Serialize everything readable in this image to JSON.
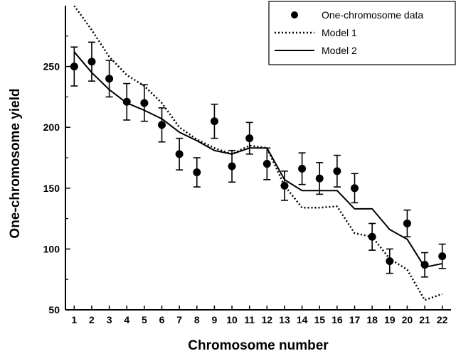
{
  "chart_data": {
    "type": "scatter",
    "title": "",
    "xlabel": "Chromosome number",
    "ylabel": "One-chromosome yield",
    "xlim": [
      0.5,
      22.5
    ],
    "ylim": [
      50,
      300
    ],
    "x_ticks": [
      1,
      2,
      3,
      4,
      5,
      6,
      7,
      8,
      9,
      10,
      11,
      12,
      13,
      14,
      15,
      16,
      17,
      18,
      19,
      20,
      21,
      22
    ],
    "y_ticks": [
      50,
      100,
      150,
      200,
      250
    ],
    "grid": false,
    "legend_position": "top-right",
    "series": [
      {
        "name": "One-chromosome data",
        "kind": "points-with-error-bars",
        "color": "#000000",
        "x": [
          1,
          2,
          3,
          4,
          5,
          6,
          7,
          8,
          9,
          10,
          11,
          12,
          13,
          14,
          15,
          16,
          17,
          18,
          19,
          20,
          21,
          22
        ],
        "y": [
          250,
          254,
          240,
          221,
          220,
          202,
          178,
          163,
          205,
          168,
          191,
          170,
          152,
          166,
          158,
          164,
          150,
          110,
          90,
          121,
          87,
          94
        ],
        "err": [
          16,
          16,
          15,
          15,
          15,
          14,
          13,
          12,
          14,
          13,
          13,
          13,
          12,
          13,
          13,
          13,
          12,
          11,
          10,
          11,
          10,
          10
        ]
      },
      {
        "name": "Model 1",
        "kind": "dotted-line",
        "color": "#000000",
        "x": [
          1,
          2,
          3,
          4,
          5,
          6,
          7,
          8,
          9,
          10,
          11,
          12,
          13,
          14,
          15,
          16,
          17,
          18,
          19,
          20,
          21,
          22
        ],
        "y": [
          300,
          280,
          258,
          243,
          234,
          220,
          200,
          190,
          183,
          178,
          185,
          183,
          152,
          134,
          134,
          135,
          113,
          110,
          92,
          83,
          58,
          63
        ]
      },
      {
        "name": "Model 2",
        "kind": "solid-line",
        "color": "#000000",
        "x": [
          1,
          2,
          3,
          4,
          5,
          6,
          7,
          8,
          9,
          10,
          11,
          12,
          13,
          14,
          15,
          16,
          17,
          18,
          19,
          20,
          21,
          22
        ],
        "y": [
          262,
          245,
          231,
          220,
          214,
          207,
          196,
          189,
          181,
          178,
          183,
          183,
          157,
          148,
          148,
          148,
          133,
          133,
          116,
          108,
          85,
          88
        ]
      }
    ]
  }
}
